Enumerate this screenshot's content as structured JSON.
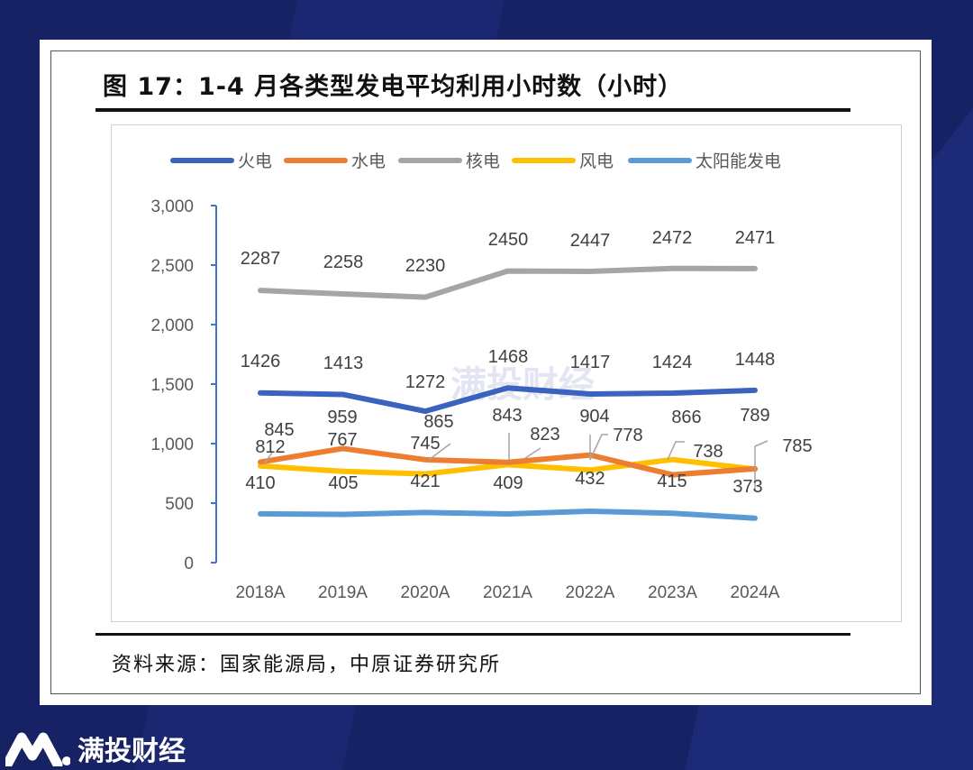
{
  "title": "图 17：1-4 月各类型发电平均利用小时数（小时）",
  "source": "资料来源：国家能源局，中原证券研究所",
  "watermark": "满投财经",
  "logo_text": "满投财经",
  "chart_data": {
    "type": "line",
    "title": "",
    "categories": [
      "2018A",
      "2019A",
      "2020A",
      "2021A",
      "2022A",
      "2023A",
      "2024A"
    ],
    "ylim": [
      0,
      3000
    ],
    "yticks": [
      "0",
      "500",
      "1,000",
      "1,500",
      "2,000",
      "2,500",
      "3,000"
    ],
    "ytick_values": [
      0,
      500,
      1000,
      1500,
      2000,
      2500,
      3000
    ],
    "grid": false,
    "legend_position": "top",
    "series": [
      {
        "name": "火电",
        "color": "#3a63c0",
        "values": [
          1426,
          1413,
          1272,
          1468,
          1417,
          1424,
          1448
        ]
      },
      {
        "name": "水电",
        "color": "#ed7d31",
        "values": [
          845,
          959,
          865,
          843,
          904,
          738,
          789
        ]
      },
      {
        "name": "核电",
        "color": "#a5a5a5",
        "values": [
          2287,
          2258,
          2230,
          2450,
          2447,
          2472,
          2471
        ]
      },
      {
        "name": "风电",
        "color": "#ffc000",
        "values": [
          812,
          767,
          745,
          823,
          778,
          866,
          785
        ]
      },
      {
        "name": "太阳能发电",
        "color": "#5b9bd5",
        "values": [
          410,
          405,
          421,
          409,
          432,
          415,
          373
        ]
      }
    ]
  }
}
